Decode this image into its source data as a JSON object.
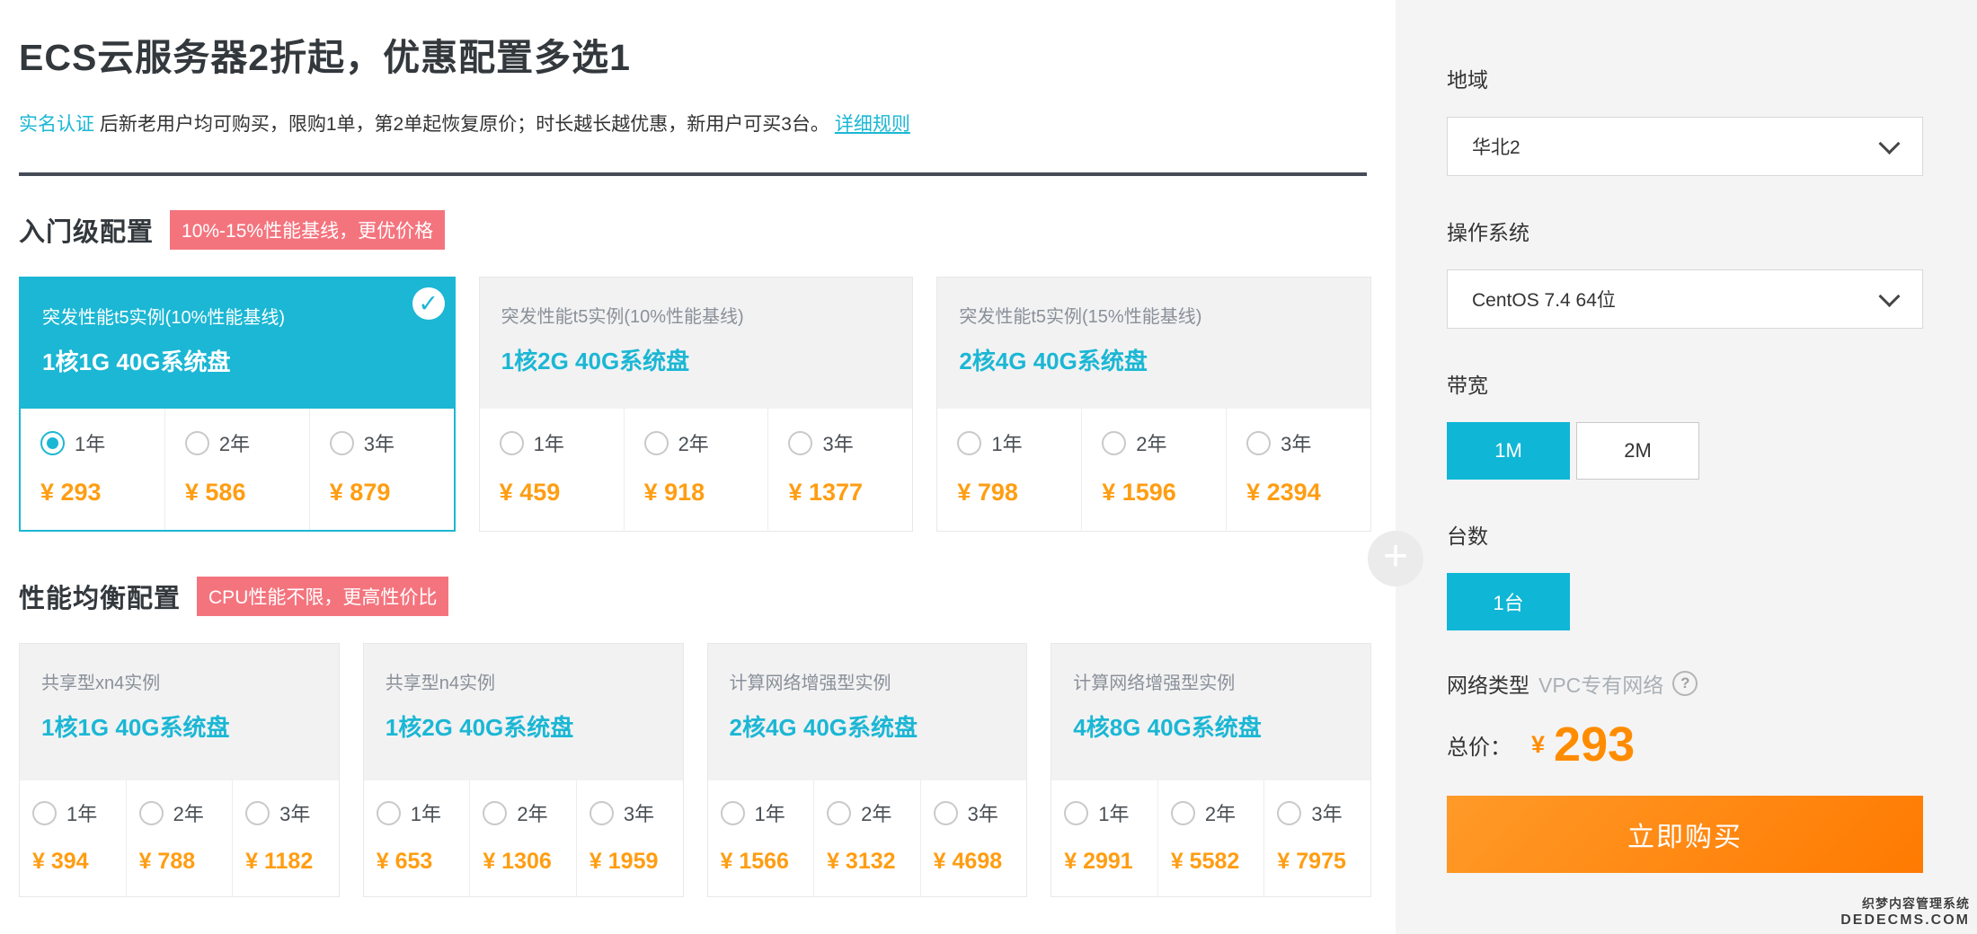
{
  "page": {
    "title": "ECS云服务器2折起，优惠配置多选1",
    "subtitle_link1": "实名认证",
    "subtitle_text": " 后新老用户均可购买，限购1单，第2单起恢复原价；时长越长越优惠，新用户可买3台。",
    "subtitle_link2": "详细规则"
  },
  "sections": [
    {
      "heading": "入门级配置",
      "badge": "10%-15%性能基线，更优价格",
      "cards": [
        {
          "title": "突发性能t5实例(10%性能基线)",
          "spec": "1核1G 40G系统盘",
          "selected": true,
          "options": [
            {
              "term": "1年",
              "price": "¥ 293",
              "checked": true
            },
            {
              "term": "2年",
              "price": "¥ 586",
              "checked": false
            },
            {
              "term": "3年",
              "price": "¥ 879",
              "checked": false
            }
          ]
        },
        {
          "title": "突发性能t5实例(10%性能基线)",
          "spec": "1核2G 40G系统盘",
          "selected": false,
          "options": [
            {
              "term": "1年",
              "price": "¥ 459",
              "checked": false
            },
            {
              "term": "2年",
              "price": "¥ 918",
              "checked": false
            },
            {
              "term": "3年",
              "price": "¥ 1377",
              "checked": false
            }
          ]
        },
        {
          "title": "突发性能t5实例(15%性能基线)",
          "spec": "2核4G 40G系统盘",
          "selected": false,
          "options": [
            {
              "term": "1年",
              "price": "¥ 798",
              "checked": false
            },
            {
              "term": "2年",
              "price": "¥ 1596",
              "checked": false
            },
            {
              "term": "3年",
              "price": "¥ 2394",
              "checked": false
            }
          ]
        }
      ]
    },
    {
      "heading": "性能均衡配置",
      "badge": "CPU性能不限，更高性价比",
      "cards": [
        {
          "title": "共享型xn4实例",
          "spec": "1核1G 40G系统盘",
          "selected": false,
          "options": [
            {
              "term": "1年",
              "price": "¥ 394",
              "checked": false
            },
            {
              "term": "2年",
              "price": "¥ 788",
              "checked": false
            },
            {
              "term": "3年",
              "price": "¥ 1182",
              "checked": false
            }
          ]
        },
        {
          "title": "共享型n4实例",
          "spec": "1核2G 40G系统盘",
          "selected": false,
          "options": [
            {
              "term": "1年",
              "price": "¥ 653",
              "checked": false
            },
            {
              "term": "2年",
              "price": "¥ 1306",
              "checked": false
            },
            {
              "term": "3年",
              "price": "¥ 1959",
              "checked": false
            }
          ]
        },
        {
          "title": "计算网络增强型实例",
          "spec": "2核4G 40G系统盘",
          "selected": false,
          "options": [
            {
              "term": "1年",
              "price": "¥ 1566",
              "checked": false
            },
            {
              "term": "2年",
              "price": "¥ 3132",
              "checked": false
            },
            {
              "term": "3年",
              "price": "¥ 4698",
              "checked": false
            }
          ]
        },
        {
          "title": "计算网络增强型实例",
          "spec": "4核8G 40G系统盘",
          "selected": false,
          "options": [
            {
              "term": "1年",
              "price": "¥ 2991",
              "checked": false
            },
            {
              "term": "2年",
              "price": "¥ 5582",
              "checked": false
            },
            {
              "term": "3年",
              "price": "¥ 7975",
              "checked": false
            }
          ]
        }
      ]
    }
  ],
  "sidebar": {
    "region_label": "地域",
    "region_value": "华北2",
    "os_label": "操作系统",
    "os_value": "CentOS 7.4 64位",
    "bandwidth_label": "带宽",
    "bandwidth_options": [
      {
        "label": "1M",
        "selected": true
      },
      {
        "label": "2M",
        "selected": false
      }
    ],
    "quantity_label": "台数",
    "quantity_options": [
      {
        "label": "1台",
        "selected": true
      }
    ],
    "network_label": "网络类型",
    "network_value": "VPC专有网络",
    "total_label": "总价：",
    "total_currency": "¥",
    "total_value": "293",
    "buy_button": "立即购买"
  },
  "icons": {
    "check": "✓",
    "plus": "+",
    "help": "?"
  },
  "watermark": {
    "line1": "织梦内容管理系统",
    "line2": "DEDECMS.COM"
  },
  "colors": {
    "accent_cyan": "#1bb7d4",
    "price_orange": "#ff9d12",
    "total_orange": "#ff8c00",
    "badge_pink": "#f4747e",
    "buy_gradient_start": "#ff9a28",
    "buy_gradient_end": "#ff7a01",
    "divider_dark": "#454b57",
    "sidebar_bg": "#f4f4f5"
  }
}
